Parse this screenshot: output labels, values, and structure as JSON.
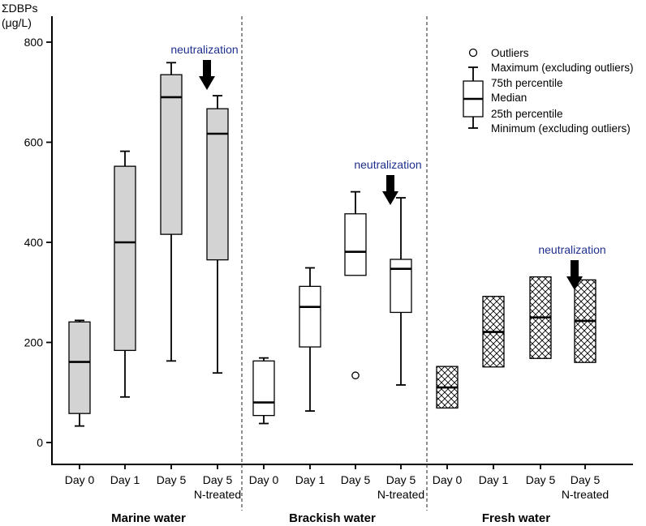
{
  "chart_data": {
    "type": "box",
    "ylabel_line1": "ΣDBPs",
    "ylabel_line2": "(μg/L)",
    "ylim": [
      -50,
      840
    ],
    "yticks": [
      0,
      200,
      400,
      600,
      800
    ],
    "ytick_labels": [
      "0",
      "200",
      "400",
      "600",
      "800"
    ],
    "groups": [
      {
        "name": "Marine water",
        "style": "gray",
        "categories": [
          {
            "label": "Day 0",
            "sublabel": "",
            "min": 33,
            "q1": 58,
            "median": 161,
            "q3": 241,
            "max": 244,
            "outliers": []
          },
          {
            "label": "Day 1",
            "sublabel": "",
            "min": 91,
            "q1": 184,
            "median": 400,
            "q3": 552,
            "max": 582,
            "outliers": []
          },
          {
            "label": "Day 5",
            "sublabel": "",
            "min": 163,
            "q1": 416,
            "median": 690,
            "q3": 735,
            "max": 759,
            "outliers": []
          },
          {
            "label": "Day 5",
            "sublabel": "N-treated",
            "min": 139,
            "q1": 365,
            "median": 617,
            "q3": 667,
            "max": 693,
            "outliers": []
          }
        ]
      },
      {
        "name": "Brackish water",
        "style": "white",
        "categories": [
          {
            "label": "Day 0",
            "sublabel": "",
            "min": 38,
            "q1": 54,
            "median": 80,
            "q3": 163,
            "max": 169,
            "outliers": []
          },
          {
            "label": "Day 1",
            "sublabel": "",
            "min": 63,
            "q1": 191,
            "median": 271,
            "q3": 312,
            "max": 349,
            "outliers": []
          },
          {
            "label": "Day 5",
            "sublabel": "",
            "min": 334,
            "q1": 334,
            "median": 381,
            "q3": 457,
            "max": 501,
            "outliers": [
              134
            ]
          },
          {
            "label": "Day 5",
            "sublabel": "N-treated",
            "min": 115,
            "q1": 260,
            "median": 347,
            "q3": 366,
            "max": 489,
            "outliers": []
          }
        ]
      },
      {
        "name": "Fresh water",
        "style": "hatch",
        "categories": [
          {
            "label": "Day 0",
            "sublabel": "",
            "min": 69,
            "q1": 69,
            "median": 110,
            "q3": 152,
            "max": 152,
            "outliers": []
          },
          {
            "label": "Day 1",
            "sublabel": "",
            "min": 151,
            "q1": 151,
            "median": 221,
            "q3": 292,
            "max": 292,
            "outliers": []
          },
          {
            "label": "Day 5",
            "sublabel": "",
            "min": 168,
            "q1": 168,
            "median": 250,
            "q3": 331,
            "max": 331,
            "outliers": []
          },
          {
            "label": "Day 5",
            "sublabel": "N-treated",
            "min": 160,
            "q1": 160,
            "median": 243,
            "q3": 325,
            "max": 325,
            "outliers": []
          }
        ]
      }
    ],
    "annotations": [
      {
        "text": "neutralization",
        "group": 0,
        "category": 3,
        "y": 800
      },
      {
        "text": "neutralization",
        "group": 1,
        "category": 3,
        "y": 570
      },
      {
        "text": "neutralization",
        "group": 2,
        "category": 3,
        "y": 400
      }
    ],
    "legend": {
      "position": "top-right",
      "items": [
        "Outliers",
        "Maximum (excluding outliers)",
        "75th percentile",
        "Median",
        "25th percentile",
        "Minimum (excluding outliers)"
      ]
    },
    "colors": {
      "gray_fill": "#d3d3d3",
      "white_fill": "#ffffff",
      "annotation": "#1f2f8f",
      "line": "#000000",
      "separator": "#555555"
    }
  }
}
